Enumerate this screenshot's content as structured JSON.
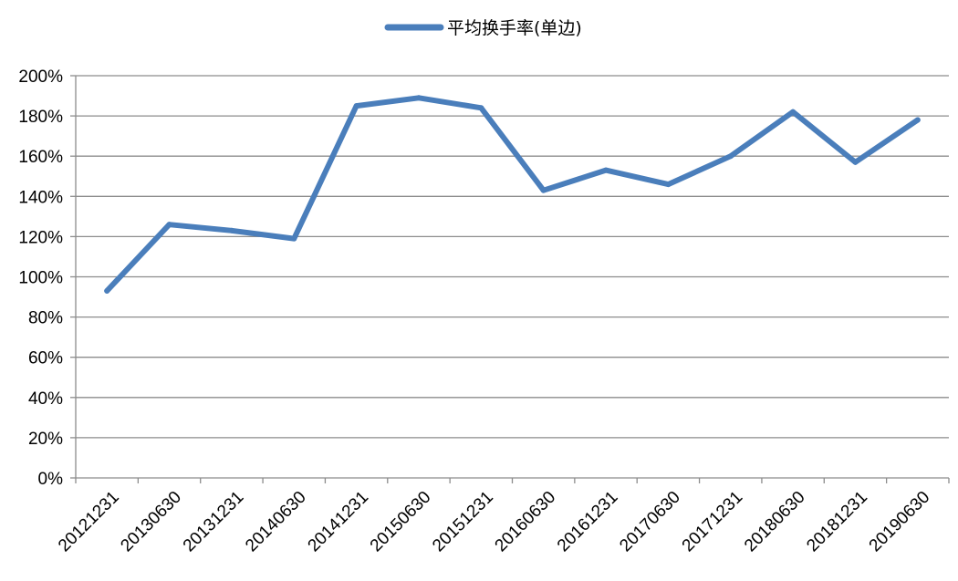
{
  "chart_data": {
    "type": "line",
    "title": "",
    "xlabel": "",
    "ylabel": "",
    "categories": [
      "20121231",
      "20130630",
      "20131231",
      "20140630",
      "20141231",
      "20150630",
      "20151231",
      "20160630",
      "20161231",
      "20170630",
      "20171231",
      "20180630",
      "20181231",
      "20190630"
    ],
    "series": [
      {
        "name": "平均换手率(单边)",
        "color": "#4a7ebb",
        "values": [
          93,
          126,
          123,
          119,
          185,
          189,
          184,
          143,
          153,
          146,
          160,
          182,
          157,
          178
        ]
      }
    ],
    "ylim": [
      0,
      200
    ],
    "y_ticks": [
      "0%",
      "20%",
      "40%",
      "60%",
      "80%",
      "100%",
      "120%",
      "140%",
      "160%",
      "180%",
      "200%"
    ],
    "y_tick_values": [
      0,
      20,
      40,
      60,
      80,
      100,
      120,
      140,
      160,
      180,
      200
    ],
    "y_unit": "%",
    "grid": true,
    "legend_position": "top-center"
  }
}
